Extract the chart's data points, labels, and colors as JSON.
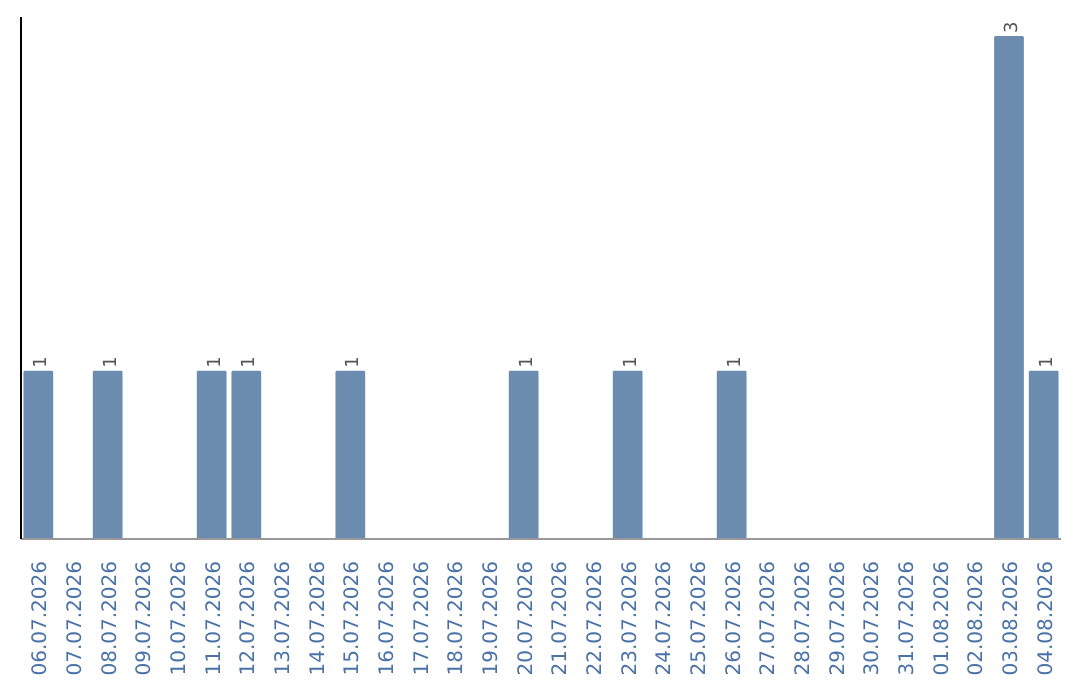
{
  "chart_data": {
    "type": "bar",
    "categories": [
      "06.07.2026",
      "07.07.2026",
      "08.07.2026",
      "09.07.2026",
      "10.07.2026",
      "11.07.2026",
      "12.07.2026",
      "13.07.2026",
      "14.07.2026",
      "15.07.2026",
      "16.07.2026",
      "17.07.2026",
      "18.07.2026",
      "19.07.2026",
      "20.07.2026",
      "21.07.2026",
      "22.07.2026",
      "23.07.2026",
      "24.07.2026",
      "25.07.2026",
      "26.07.2026",
      "27.07.2026",
      "28.07.2026",
      "29.07.2026",
      "30.07.2026",
      "31.07.2026",
      "01.08.2026",
      "02.08.2026",
      "03.08.2026",
      "04.08.2026"
    ],
    "values": [
      1,
      0,
      1,
      0,
      0,
      1,
      1,
      0,
      0,
      1,
      0,
      0,
      0,
      0,
      1,
      0,
      0,
      1,
      0,
      0,
      1,
      0,
      0,
      0,
      0,
      0,
      0,
      0,
      3,
      1
    ],
    "value_labels": [
      "1",
      null,
      "1",
      null,
      null,
      "1",
      "1",
      null,
      null,
      "1",
      null,
      null,
      null,
      null,
      "1",
      null,
      null,
      "1",
      null,
      null,
      "1",
      null,
      null,
      null,
      null,
      null,
      null,
      null,
      "3",
      "1"
    ],
    "color": "#6b8caf",
    "tick_labels": "x",
    "grid": false
  }
}
